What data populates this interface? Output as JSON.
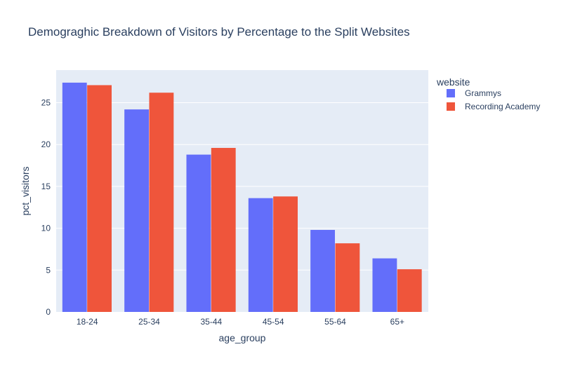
{
  "chart_data": {
    "type": "bar",
    "title": "Demograghic Breakdown of Visitors by Percentage to the Split Websites",
    "xlabel": "age_group",
    "ylabel": "pct_visitors",
    "categories": [
      "18-24",
      "25-34",
      "35-44",
      "45-54",
      "55-64",
      "65+"
    ],
    "series": [
      {
        "name": "Grammys",
        "values": [
          27.4,
          24.2,
          18.8,
          13.6,
          9.8,
          6.4
        ],
        "color": "#636efa"
      },
      {
        "name": "Recording Academy",
        "values": [
          27.1,
          26.2,
          19.6,
          13.8,
          8.2,
          5.1
        ],
        "color": "#ef553b"
      }
    ],
    "ylim": [
      0,
      28.9
    ],
    "yticks": [
      0,
      5,
      10,
      15,
      20,
      25
    ],
    "grid": true,
    "legend": {
      "title": "website",
      "position": "top-right"
    },
    "plot_background": "#e5ecf6"
  }
}
